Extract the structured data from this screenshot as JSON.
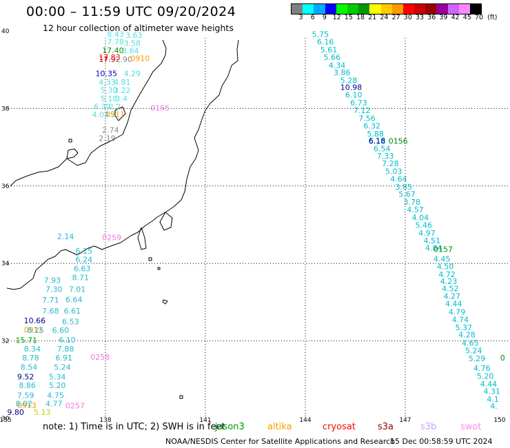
{
  "title": "00:00 – 11:59 UTC 09/20/2024",
  "subtitle": "12 hour collection of altimeter wave heights",
  "colorbar": {
    "colors": [
      "#808080",
      "#00ffff",
      "#00aaff",
      "#0000ff",
      "#00ff00",
      "#00cc00",
      "#009900",
      "#ffff00",
      "#ffcc00",
      "#ff9900",
      "#ff0000",
      "#cc0000",
      "#990000",
      "#990099",
      "#cc66ff",
      "#ff88ff",
      "#000000"
    ],
    "labels": [
      "3",
      "6",
      "9",
      "12",
      "15",
      "18",
      "21",
      "24",
      "27",
      "30",
      "33",
      "36",
      "39",
      "42",
      "45",
      "70",
      "(ft)"
    ]
  },
  "axes": {
    "lat_ticks": [
      "40",
      "38",
      "36",
      "34",
      "32",
      "30"
    ],
    "lon_ticks": [
      "135",
      "138",
      "141",
      "144",
      "147",
      "150"
    ]
  },
  "tracks": [
    {
      "color": "#55dddd",
      "items": [
        {
          "t": "8.43",
          "lon": 138.05,
          "lat": 39.92
        },
        {
          "t": "3.63",
          "lon": 138.6,
          "lat": 39.89
        },
        {
          "t": "7.78",
          "lon": 138.05,
          "lat": 39.72
        },
        {
          "t": "3.58",
          "lon": 138.55,
          "lat": 39.69
        },
        {
          "t": "3.64",
          "lon": 138.5,
          "lat": 39.49
        },
        {
          "t": "4.29",
          "lon": 138.55,
          "lat": 38.91
        },
        {
          "t": "4.33",
          "lon": 137.8,
          "lat": 38.68
        },
        {
          "t": "4.81",
          "lon": 138.25,
          "lat": 38.68
        },
        {
          "t": "5.30",
          "lon": 137.85,
          "lat": 38.48
        },
        {
          "t": "3.22",
          "lon": 138.25,
          "lat": 38.47
        },
        {
          "t": "5.18",
          "lon": 137.85,
          "lat": 38.26
        },
        {
          "t": "3.4",
          "lon": 138.3,
          "lat": 38.26
        },
        {
          "t": "6.39",
          "lon": 137.65,
          "lat": 38.05
        },
        {
          "t": "2.2",
          "lon": 138.1,
          "lat": 38.05
        },
        {
          "t": "4.03",
          "lon": 137.6,
          "lat": 37.85
        },
        {
          "t": "3.3",
          "lon": 137.95,
          "lat": 37.85
        }
      ]
    },
    {
      "color": "#009900",
      "items": [
        {
          "t": "17.40",
          "lon": 137.9,
          "lat": 39.5
        }
      ]
    },
    {
      "color": "#ff0000",
      "items": [
        {
          "t": "17.83",
          "lon": 137.8,
          "lat": 39.32
        }
      ]
    },
    {
      "color": "#cc0000",
      "items": [
        {
          "t": "17.92",
          "lon": 137.8,
          "lat": 39.27
        }
      ]
    },
    {
      "color": "#888888",
      "items": [
        {
          "t": "2.90",
          "lon": 138.3,
          "lat": 39.27
        },
        {
          "t": "2.74",
          "lon": 137.9,
          "lat": 37.45
        },
        {
          "t": "2.19",
          "lon": 137.8,
          "lat": 37.23
        }
      ]
    },
    {
      "color": "#0000cc",
      "items": [
        {
          "t": "10.35",
          "lon": 137.7,
          "lat": 38.91
        }
      ]
    },
    {
      "color": "#ff9900",
      "items": [
        {
          "t": "0910",
          "lon": 138.75,
          "lat": 39.3
        },
        {
          "t": "0911",
          "lon": 138.0,
          "lat": 37.86
        },
        {
          "t": "0912",
          "lon": 135.55,
          "lat": 32.29
        },
        {
          "t": "0913",
          "lon": 135.35,
          "lat": 30.34
        }
      ]
    },
    {
      "color": "#ee77dd",
      "items": [
        {
          "t": "0155",
          "lon": 139.35,
          "lat": 38.02
        },
        {
          "t": "0259",
          "lon": 137.9,
          "lat": 34.67
        },
        {
          "t": "0258",
          "lon": 137.55,
          "lat": 31.58
        },
        {
          "t": "0257",
          "lon": 136.8,
          "lat": 30.33
        }
      ]
    },
    {
      "color": "#00bbcc",
      "items": [
        {
          "t": "5.75",
          "lon": 144.2,
          "lat": 39.92
        },
        {
          "t": "6.16",
          "lon": 144.35,
          "lat": 39.72
        },
        {
          "t": "5.61",
          "lon": 144.45,
          "lat": 39.52
        },
        {
          "t": "5.66",
          "lon": 144.55,
          "lat": 39.32
        },
        {
          "t": "4.34",
          "lon": 144.7,
          "lat": 39.12
        },
        {
          "t": "3.86",
          "lon": 144.85,
          "lat": 38.93
        },
        {
          "t": "5.28",
          "lon": 145.05,
          "lat": 38.73
        },
        {
          "t": "6.10",
          "lon": 145.2,
          "lat": 38.35
        },
        {
          "t": "6.73",
          "lon": 145.35,
          "lat": 38.15
        },
        {
          "t": "7.12",
          "lon": 145.45,
          "lat": 37.95
        },
        {
          "t": "7.56",
          "lon": 145.6,
          "lat": 37.75
        },
        {
          "t": "6.32",
          "lon": 145.75,
          "lat": 37.55
        },
        {
          "t": "5.88",
          "lon": 145.85,
          "lat": 37.35
        },
        {
          "t": "6.16",
          "lon": 145.9,
          "lat": 37.18
        },
        {
          "t": "6.54",
          "lon": 146.05,
          "lat": 36.97
        },
        {
          "t": "7.33",
          "lon": 146.15,
          "lat": 36.78
        },
        {
          "t": "7.28",
          "lon": 146.3,
          "lat": 36.58
        },
        {
          "t": "5.03",
          "lon": 146.4,
          "lat": 36.38
        },
        {
          "t": "4.64",
          "lon": 146.55,
          "lat": 36.18
        },
        {
          "t": "3.85",
          "lon": 146.7,
          "lat": 35.98
        },
        {
          "t": "5.67",
          "lon": 146.8,
          "lat": 35.79
        },
        {
          "t": "3.78",
          "lon": 146.95,
          "lat": 35.59
        },
        {
          "t": "4.57",
          "lon": 147.05,
          "lat": 35.39
        },
        {
          "t": "4.04",
          "lon": 147.2,
          "lat": 35.19
        },
        {
          "t": "5.46",
          "lon": 147.3,
          "lat": 34.99
        },
        {
          "t": "4.97",
          "lon": 147.4,
          "lat": 34.79
        },
        {
          "t": "4.51",
          "lon": 147.55,
          "lat": 34.59
        },
        {
          "t": "4.84",
          "lon": 147.6,
          "lat": 34.4
        },
        {
          "t": "4.45",
          "lon": 147.85,
          "lat": 34.12
        },
        {
          "t": "4.50",
          "lon": 147.95,
          "lat": 33.92
        },
        {
          "t": "4.72",
          "lon": 148.0,
          "lat": 33.72
        },
        {
          "t": "4.23",
          "lon": 148.05,
          "lat": 33.54
        },
        {
          "t": "4.52",
          "lon": 148.1,
          "lat": 33.35
        },
        {
          "t": "4.27",
          "lon": 148.15,
          "lat": 33.16
        },
        {
          "t": "4.44",
          "lon": 148.2,
          "lat": 32.96
        },
        {
          "t": "4.79",
          "lon": 148.3,
          "lat": 32.75
        },
        {
          "t": "4.74",
          "lon": 148.4,
          "lat": 32.55
        },
        {
          "t": "5.37",
          "lon": 148.5,
          "lat": 32.35
        },
        {
          "t": "4.28",
          "lon": 148.6,
          "lat": 32.16
        },
        {
          "t": "4.65",
          "lon": 148.7,
          "lat": 31.95
        },
        {
          "t": "5.24",
          "lon": 148.8,
          "lat": 31.75
        },
        {
          "t": "5.29",
          "lon": 148.9,
          "lat": 31.55
        },
        {
          "t": "4.76",
          "lon": 149.05,
          "lat": 31.3
        },
        {
          "t": "5.20",
          "lon": 149.15,
          "lat": 31.09
        },
        {
          "t": "4.44",
          "lon": 149.25,
          "lat": 30.89
        },
        {
          "t": "4.31",
          "lon": 149.35,
          "lat": 30.7
        },
        {
          "t": "4.1",
          "lon": 149.45,
          "lat": 30.5
        },
        {
          "t": "4.",
          "lon": 149.55,
          "lat": 30.32
        }
      ]
    },
    {
      "color": "#000099",
      "items": [
        {
          "t": "10.98",
          "lon": 145.05,
          "lat": 38.55
        },
        {
          "t": "6.18",
          "lon": 145.9,
          "lat": 37.16
        }
      ]
    },
    {
      "color": "#008800",
      "items": [
        {
          "t": "0156",
          "lon": 146.5,
          "lat": 37.16
        },
        {
          "t": "0157",
          "lon": 147.85,
          "lat": 34.37
        },
        {
          "t": "0",
          "lon": 149.85,
          "lat": 31.57
        }
      ]
    },
    {
      "color": "#22bbcc",
      "items": [
        {
          "t": "6.15",
          "lon": 137.1,
          "lat": 34.32
        },
        {
          "t": "6.24",
          "lon": 137.1,
          "lat": 34.1
        },
        {
          "t": "6.63",
          "lon": 137.05,
          "lat": 33.87
        },
        {
          "t": "8.71",
          "lon": 137.0,
          "lat": 33.64
        },
        {
          "t": "7.93",
          "lon": 136.15,
          "lat": 33.57
        },
        {
          "t": "7.30",
          "lon": 136.2,
          "lat": 33.34
        },
        {
          "t": "7.01",
          "lon": 136.9,
          "lat": 33.34
        },
        {
          "t": "7.71",
          "lon": 136.1,
          "lat": 33.06
        },
        {
          "t": "6.64",
          "lon": 136.8,
          "lat": 33.07
        },
        {
          "t": "7.68",
          "lon": 136.1,
          "lat": 32.78
        },
        {
          "t": "6.61",
          "lon": 136.75,
          "lat": 32.78
        },
        {
          "t": "6.53",
          "lon": 136.7,
          "lat": 32.5
        },
        {
          "t": "8.25",
          "lon": 135.65,
          "lat": 32.28
        },
        {
          "t": "6.60",
          "lon": 136.4,
          "lat": 32.28
        },
        {
          "t": "6.10",
          "lon": 136.6,
          "lat": 32.03
        },
        {
          "t": "8.34",
          "lon": 135.55,
          "lat": 31.8
        },
        {
          "t": "7.88",
          "lon": 136.55,
          "lat": 31.8
        },
        {
          "t": "8.78",
          "lon": 135.5,
          "lat": 31.57
        },
        {
          "t": "6.91",
          "lon": 136.5,
          "lat": 31.57
        },
        {
          "t": "8.54",
          "lon": 135.45,
          "lat": 31.33
        },
        {
          "t": "5.24",
          "lon": 136.45,
          "lat": 31.33
        },
        {
          "t": "5.34",
          "lon": 136.3,
          "lat": 31.08
        },
        {
          "t": "8.86",
          "lon": 135.4,
          "lat": 30.85
        },
        {
          "t": "5.20",
          "lon": 136.3,
          "lat": 30.85
        },
        {
          "t": "7.59",
          "lon": 135.35,
          "lat": 30.6
        },
        {
          "t": "4.75",
          "lon": 136.25,
          "lat": 30.6
        },
        {
          "t": "8.02",
          "lon": 135.3,
          "lat": 30.38
        },
        {
          "t": "4.77",
          "lon": 136.2,
          "lat": 30.38
        },
        {
          "t": "2.14",
          "lon": 136.55,
          "lat": 34.7
        }
      ]
    },
    {
      "color": "#000088",
      "items": [
        {
          "t": "10.66",
          "lon": 135.55,
          "lat": 32.53
        },
        {
          "t": "9.52",
          "lon": 135.35,
          "lat": 31.08
        },
        {
          "t": "9.80",
          "lon": 135.05,
          "lat": 30.16
        }
      ]
    },
    {
      "color": "#009900",
      "items": [
        {
          "t": "15.71",
          "lon": 135.3,
          "lat": 32.02
        }
      ]
    },
    {
      "color": "#cccc00",
      "items": [
        {
          "t": "5.13",
          "lon": 135.85,
          "lat": 30.16
        }
      ]
    }
  ],
  "note": "note:  1) Time is in UTC;  2) SWH is in feet",
  "legend": [
    {
      "t": "jason3",
      "c": "#009900"
    },
    {
      "t": "altika",
      "c": "#ff9900"
    },
    {
      "t": "cryosat",
      "c": "#ff0000"
    },
    {
      "t": "s3a",
      "c": "#990000"
    },
    {
      "t": "s3b",
      "c": "#c8a0ff"
    },
    {
      "t": "swot",
      "c": "#ff88ee"
    }
  ],
  "credit": "NOAA/NESDIS Center for Satellite Applications and Research",
  "timestamp": "15 Dec 00:58:59 UTC 2024"
}
